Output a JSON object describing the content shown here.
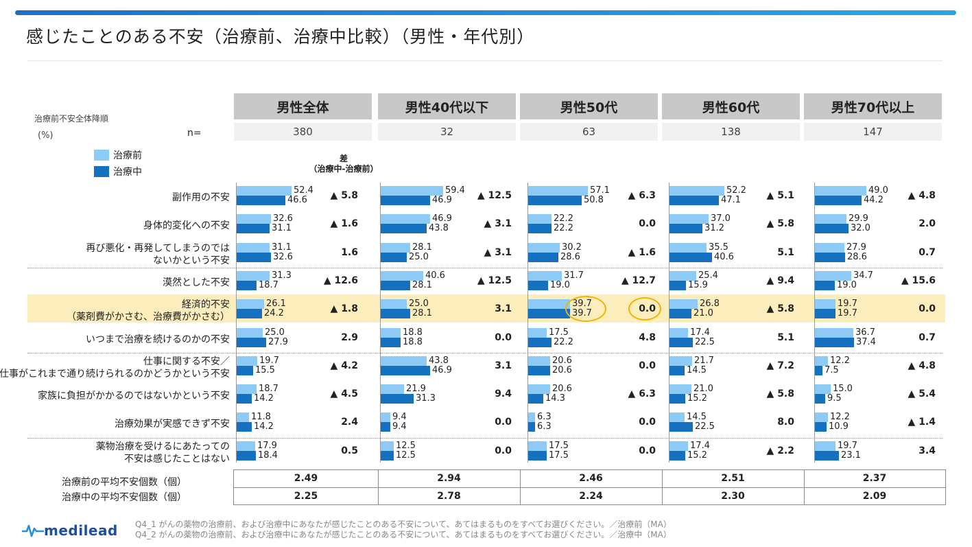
{
  "title": "感じたことのある不安（治療前、治療中比較）（男性・年代別）",
  "notes": {
    "sort": "治療前不安全体降順",
    "unit": "(%)",
    "n_label": "n="
  },
  "legend": {
    "before": "治療前",
    "during": "治療中"
  },
  "diff_header": [
    "差",
    "（治療中-治療前）"
  ],
  "colors": {
    "before": "#8dcaf5",
    "during": "#1570c0",
    "highlight": "#fcedbd",
    "ring": "#f0b400"
  },
  "chart_data": {
    "type": "bar",
    "orientation": "horizontal",
    "unit": "%",
    "series_names": [
      "治療前",
      "治療中"
    ],
    "categories": [
      "副作用の不安",
      "身体的変化への不安",
      "再び悪化・再発してしまうのでは\nないかという不安",
      "漠然とした不安",
      "経済的不安\n（薬剤費がかさむ、治療費がかさむ）",
      "いつまで治療を続けるのかの不安",
      "仕事に関する不安／\n仕事がこれまで通り続けられるのかどうかという不安",
      "家族に負担がかかるのではないかという不安",
      "治療効果が実感できず不安",
      "薬物治療を受けるにあたっての\n不安は感じたことはない"
    ],
    "groups": [
      {
        "name": "男性全体",
        "n": "380",
        "before": [
          "52.4",
          "32.6",
          "31.1",
          "31.3",
          "26.1",
          "25.0",
          "19.7",
          "18.7",
          "11.8",
          "17.9"
        ],
        "during": [
          "46.6",
          "31.1",
          "32.6",
          "18.7",
          "24.2",
          "27.9",
          "15.5",
          "14.2",
          "14.2",
          "18.4"
        ],
        "diff": [
          "▲ 5.8",
          "▲ 1.6",
          "1.6",
          "▲ 12.6",
          "▲ 1.8",
          "2.9",
          "▲ 4.2",
          "▲ 4.5",
          "2.4",
          "0.5"
        ],
        "avg_before": "2.49",
        "avg_during": "2.25"
      },
      {
        "name": "男性40代以下",
        "n": "32",
        "before": [
          "59.4",
          "46.9",
          "28.1",
          "40.6",
          "25.0",
          "18.8",
          "43.8",
          "21.9",
          "9.4",
          "12.5"
        ],
        "during": [
          "46.9",
          "43.8",
          "25.0",
          "28.1",
          "28.1",
          "18.8",
          "46.9",
          "31.3",
          "9.4",
          "12.5"
        ],
        "diff": [
          "▲ 12.5",
          "▲ 3.1",
          "▲ 3.1",
          "▲ 12.5",
          "3.1",
          "0.0",
          "3.1",
          "9.4",
          "0.0",
          "0.0"
        ],
        "avg_before": "2.94",
        "avg_during": "2.78"
      },
      {
        "name": "男性50代",
        "n": "63",
        "before": [
          "57.1",
          "22.2",
          "30.2",
          "31.7",
          "39.7",
          "17.5",
          "20.6",
          "20.6",
          "6.3",
          "17.5"
        ],
        "during": [
          "50.8",
          "22.2",
          "28.6",
          "19.0",
          "39.7",
          "22.2",
          "20.6",
          "14.3",
          "6.3",
          "17.5"
        ],
        "diff": [
          "▲ 6.3",
          "0.0",
          "▲ 1.6",
          "▲ 12.7",
          "0.0",
          "4.8",
          "0.0",
          "▲ 6.3",
          "0.0",
          "0.0"
        ],
        "avg_before": "2.46",
        "avg_during": "2.24"
      },
      {
        "name": "男性60代",
        "n": "138",
        "before": [
          "52.2",
          "37.0",
          "35.5",
          "25.4",
          "26.8",
          "17.4",
          "21.7",
          "21.0",
          "14.5",
          "17.4"
        ],
        "during": [
          "47.1",
          "31.2",
          "40.6",
          "15.9",
          "21.0",
          "22.5",
          "14.5",
          "15.2",
          "22.5",
          "15.2"
        ],
        "diff": [
          "▲ 5.1",
          "▲ 5.8",
          "5.1",
          "▲ 9.4",
          "▲ 5.8",
          "5.1",
          "▲ 7.2",
          "▲ 5.8",
          "8.0",
          "▲ 2.2"
        ],
        "avg_before": "2.51",
        "avg_during": "2.30"
      },
      {
        "name": "男性70代以上",
        "n": "147",
        "before": [
          "49.0",
          "29.9",
          "27.9",
          "34.7",
          "19.7",
          "36.7",
          "12.2",
          "15.0",
          "12.2",
          "19.7"
        ],
        "during": [
          "44.2",
          "32.0",
          "28.6",
          "19.0",
          "19.7",
          "37.4",
          "7.5",
          "9.5",
          "10.9",
          "23.1"
        ],
        "diff": [
          "▲ 4.8",
          "2.0",
          "0.7",
          "▲ 15.6",
          "0.0",
          "0.7",
          "▲ 4.8",
          "▲ 5.4",
          "▲ 1.4",
          "3.4"
        ],
        "avg_before": "2.37",
        "avg_during": "2.09"
      }
    ],
    "highlight_row": 4
  },
  "avg_labels": {
    "before": "治療前の平均不安個数（個）",
    "during": "治療中の平均不安個数（個）"
  },
  "logo": "medilead",
  "footnotes": [
    "Q4_1  がんの薬物の治療前、および治療中にあなたが感じたことのある不安について、あてはまるものをすべてお選びください。／治療前（MA）",
    "Q4_2  がんの薬物の治療前、および治療中にあなたが感じたことのある不安について、あてはまるものをすべてお選びください。／治療中（MA）"
  ]
}
